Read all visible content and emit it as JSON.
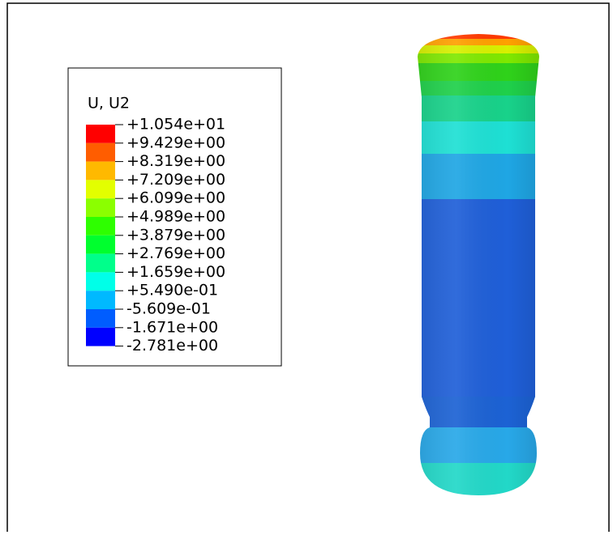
{
  "legend": {
    "title": "U, U2",
    "labels": [
      "+1.054e+01",
      "+9.429e+00",
      "+8.319e+00",
      "+7.209e+00",
      "+6.099e+00",
      "+4.989e+00",
      "+3.879e+00",
      "+2.769e+00",
      "+1.659e+00",
      "+5.490e-01",
      "-5.609e-01",
      "-1.671e+00",
      "-2.781e+00"
    ]
  }
}
